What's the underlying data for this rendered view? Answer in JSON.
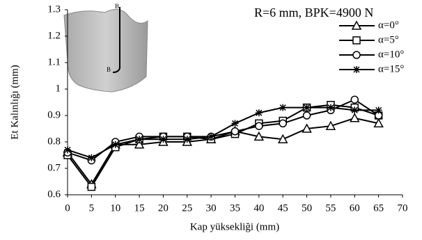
{
  "chart_data": {
    "type": "line",
    "annotation": "R=6 mm, BPK=4900 N",
    "image_labels": [
      "B",
      "B"
    ],
    "x_label": "Kap yüksekliği (mm)",
    "y_label": "Et Kalınlığı (mm)",
    "x": [
      0,
      5,
      10,
      15,
      20,
      25,
      30,
      35,
      40,
      45,
      50,
      55,
      60,
      65
    ],
    "xlim": [
      0,
      70
    ],
    "xticks": [
      0,
      5,
      10,
      15,
      20,
      25,
      30,
      35,
      40,
      45,
      50,
      55,
      60,
      65,
      70
    ],
    "ylim": [
      0.6,
      1.3
    ],
    "yticks": [
      0.6,
      0.7,
      0.8,
      0.9,
      1,
      1.1,
      1.2,
      1.3
    ],
    "legend": "upper right",
    "series": [
      {
        "name": "α=0°",
        "color": "#000000",
        "marker": "triangle",
        "values": [
          0.76,
          0.64,
          0.79,
          0.79,
          0.8,
          0.8,
          0.81,
          0.84,
          0.82,
          0.81,
          0.85,
          0.86,
          0.89,
          0.87
        ]
      },
      {
        "name": "α=5°",
        "color": "#000000",
        "marker": "square",
        "values": [
          0.75,
          0.63,
          0.78,
          0.81,
          0.82,
          0.82,
          0.81,
          0.83,
          0.87,
          0.88,
          0.93,
          0.94,
          0.93,
          0.9
        ]
      },
      {
        "name": "α=10°",
        "color": "#000000",
        "marker": "circle",
        "values": [
          0.76,
          0.73,
          0.8,
          0.82,
          0.82,
          0.82,
          0.82,
          0.84,
          0.86,
          0.87,
          0.9,
          0.92,
          0.96,
          0.9
        ]
      },
      {
        "name": "α=15°",
        "color": "#000000",
        "marker": "asterisk",
        "values": [
          0.77,
          0.74,
          0.79,
          0.81,
          0.81,
          0.81,
          0.82,
          0.87,
          0.91,
          0.93,
          0.93,
          0.93,
          0.92,
          0.92
        ]
      }
    ]
  }
}
